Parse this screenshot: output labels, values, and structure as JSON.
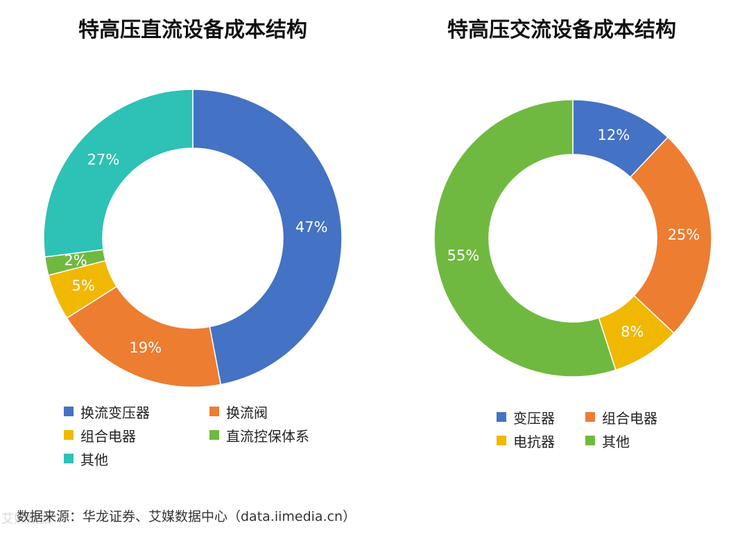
{
  "chart_data": [
    {
      "type": "pie",
      "title": "特高压直流设备成本结构",
      "categories": [
        "换流变压器",
        "换流阀",
        "组合电器",
        "直流控保体系",
        "其他"
      ],
      "values": [
        47,
        19,
        5,
        2,
        27
      ],
      "labels": [
        "47%",
        "19%",
        "5%",
        "2%",
        "27%"
      ],
      "colors": [
        "#4472C4",
        "#ED7D31",
        "#F0B800",
        "#70B940",
        "#2EC1B5"
      ],
      "legend_position": "bottom"
    },
    {
      "type": "pie",
      "title": "特高压交流设备成本结构",
      "categories": [
        "变压器",
        "组合电器",
        "电抗器",
        "其他"
      ],
      "values": [
        12,
        25,
        8,
        55
      ],
      "labels": [
        "12%",
        "25%",
        "8%",
        "55%"
      ],
      "colors": [
        "#4472C4",
        "#ED7D31",
        "#F0B800",
        "#70B940"
      ],
      "legend_position": "bottom"
    }
  ],
  "footer": {
    "source": "数据来源：华龙证券、艾媒数据中心（data.iimedia.cn）",
    "watermark": "艾媒数据"
  }
}
